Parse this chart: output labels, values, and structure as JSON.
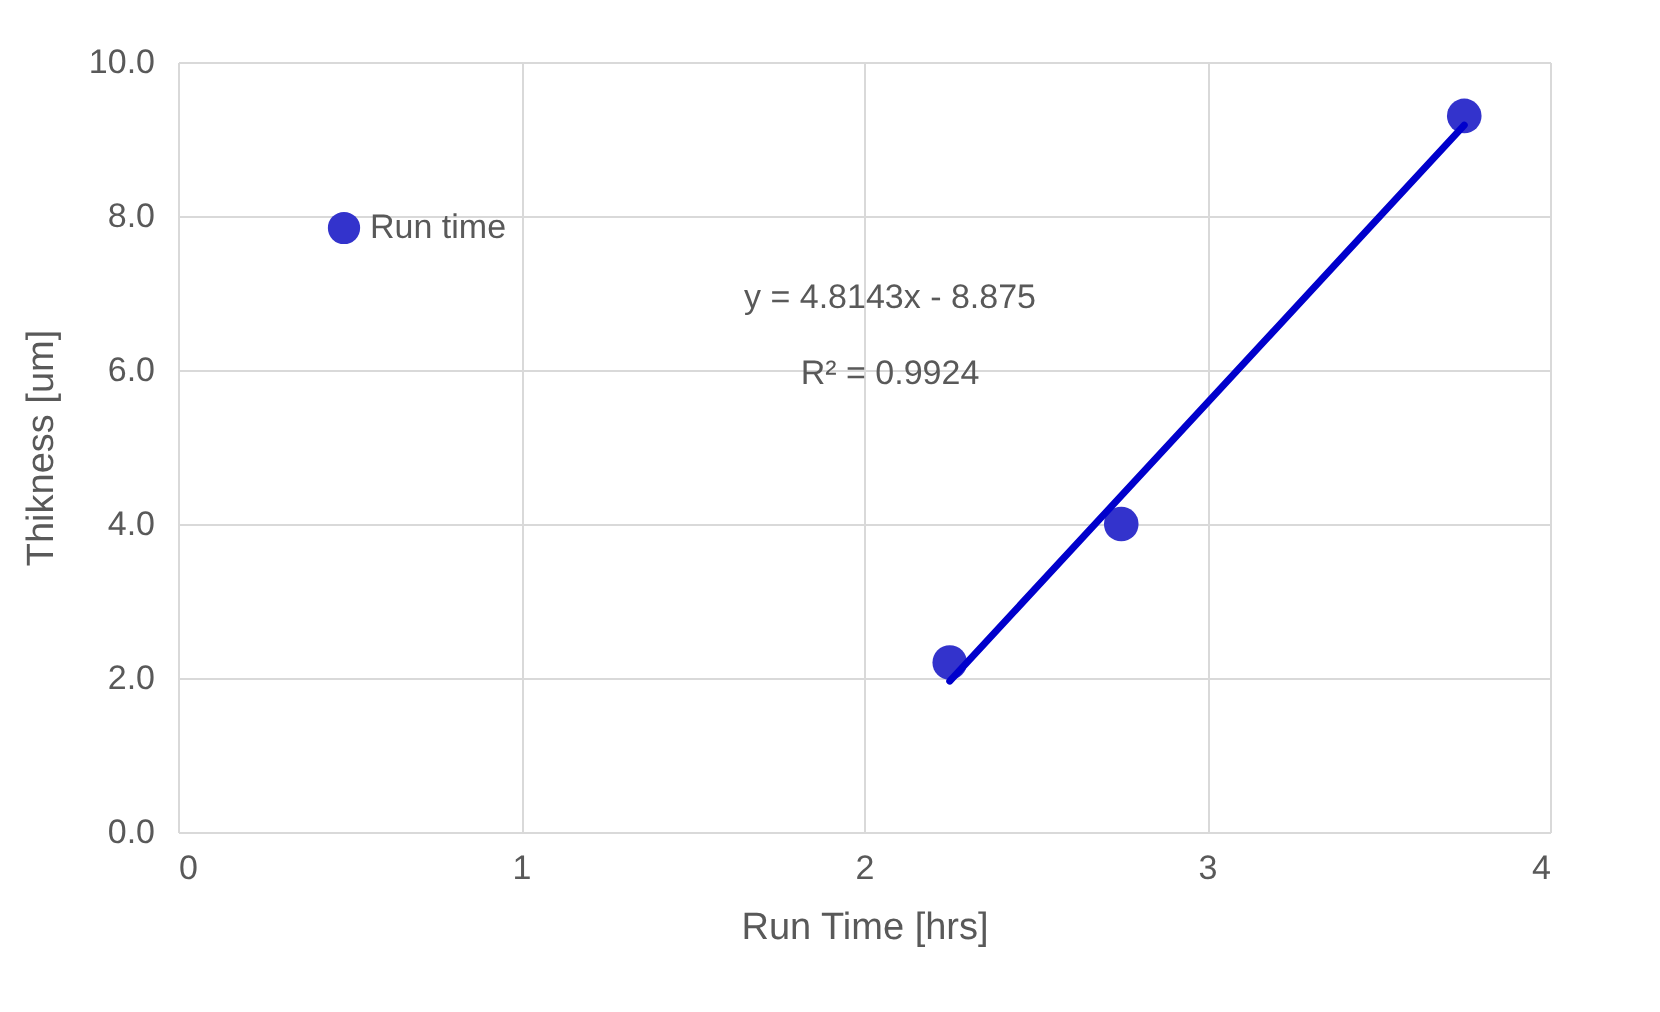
{
  "chart_data": {
    "type": "scatter",
    "xlabel": "Run Time [hrs]",
    "ylabel": "Thikness [um]",
    "xlim": [
      0,
      4
    ],
    "xticks": [
      0,
      1,
      2,
      3,
      4
    ],
    "ylim": [
      0,
      10
    ],
    "yticks": [
      {
        "value": 0,
        "label": "0.0"
      },
      {
        "value": 2,
        "label": "2.0"
      },
      {
        "value": 4,
        "label": "4.0"
      },
      {
        "value": 6,
        "label": "6.0"
      },
      {
        "value": 8,
        "label": "8.0"
      },
      {
        "value": 10,
        "label": "10.0"
      }
    ],
    "grid": true,
    "legend": "top left",
    "series": [
      {
        "name": "Run time",
        "marker": "circle",
        "color": "#3333cc",
        "x": [
          2.25,
          2.75,
          3.75
        ],
        "values": [
          2.2,
          4.0,
          9.3
        ]
      },
      {
        "type": "line",
        "marker": "none",
        "color": "#0000cc",
        "line_style": "solid",
        "x": [
          2.25,
          3.75
        ],
        "values": [
          1.96,
          9.18
        ]
      }
    ],
    "annotations": [
      "y = 4.8143x - 8.875",
      "R² = 0.9924"
    ]
  }
}
